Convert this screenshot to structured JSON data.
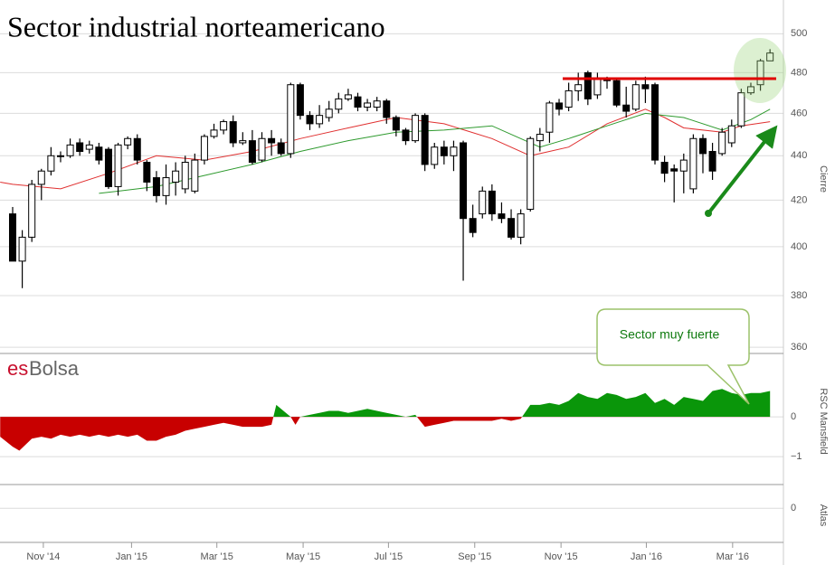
{
  "chart_data": [
    {
      "type": "candlestick",
      "title": "Sector industrial norteamericano",
      "y_label": "Cierre",
      "log": true,
      "brand": [
        "es",
        "Bolsa"
      ],
      "annotation": "Sector muy fuerte",
      "xlim": [
        -1.32,
        80.4
      ],
      "xticks": [
        {
          "value": 3.2,
          "label": "Nov '14"
        },
        {
          "value": 12.4,
          "label": "Jan '15"
        },
        {
          "value": 21.3,
          "label": "Mar '15"
        },
        {
          "value": 30.3,
          "label": "May '15"
        },
        {
          "value": 39.2,
          "label": "Jul '15"
        },
        {
          "value": 48.2,
          "label": "Sep '15"
        },
        {
          "value": 57.2,
          "label": "Nov '15"
        },
        {
          "value": 66.1,
          "label": "Jan '16"
        },
        {
          "value": 75.1,
          "label": "Mar '16"
        }
      ],
      "ylim": [
        358,
        518
      ],
      "yticks": [
        360,
        380,
        400,
        420,
        440,
        460,
        480,
        500
      ],
      "grid": true,
      "open": [
        414,
        394,
        404,
        427,
        433,
        440,
        440,
        446,
        443,
        444,
        443,
        426,
        445,
        448,
        437,
        430,
        422,
        428,
        425,
        424,
        438,
        449,
        452,
        456,
        446,
        447,
        438,
        448,
        446,
        441,
        474,
        459,
        455,
        458,
        462,
        467,
        468,
        463,
        463,
        466,
        458,
        452,
        447,
        459,
        436,
        444,
        440,
        446,
        412,
        414,
        424,
        414,
        412,
        404,
        416,
        447,
        451,
        465,
        463,
        471,
        480,
        469,
        477,
        476,
        464,
        462,
        474,
        474,
        437,
        434,
        433,
        425,
        448,
        442,
        441,
        446,
        454,
        470,
        474,
        486
      ],
      "high": [
        417,
        407,
        429,
        434,
        444,
        442,
        448,
        448,
        447,
        446,
        444,
        446,
        449,
        450,
        438,
        433,
        436,
        437,
        440,
        441,
        450,
        455,
        457,
        459,
        451,
        452,
        451,
        452,
        448,
        475,
        475,
        461,
        464,
        466,
        470,
        472,
        470,
        467,
        468,
        467,
        459,
        453,
        460,
        460,
        446,
        447,
        447,
        447,
        418,
        426,
        427,
        419,
        416,
        416,
        449,
        453,
        466,
        467,
        475,
        480,
        481,
        480,
        478,
        477,
        473,
        476,
        478,
        475,
        440,
        436,
        441,
        450,
        450,
        446,
        453,
        457,
        472,
        475,
        487,
        492
      ],
      "low": [
        394,
        383,
        402,
        420,
        431,
        437,
        439,
        440,
        441,
        436,
        425,
        422,
        443,
        436,
        424,
        419,
        418,
        422,
        423,
        423,
        436,
        448,
        450,
        444,
        445,
        436,
        437,
        440,
        440,
        439,
        457,
        452,
        453,
        456,
        460,
        466,
        461,
        461,
        461,
        455,
        449,
        445,
        446,
        433,
        434,
        436,
        433,
        386,
        404,
        412,
        411,
        410,
        403,
        401,
        415,
        442,
        446,
        459,
        461,
        466,
        464,
        467,
        472,
        463,
        458,
        461,
        465,
        436,
        428,
        419,
        423,
        423,
        432,
        429,
        440,
        444,
        453,
        469,
        471,
        486
      ],
      "close": [
        394,
        404,
        427,
        433,
        440,
        440,
        445,
        442,
        445,
        438,
        426,
        445,
        448,
        438,
        428,
        422,
        430,
        433,
        437,
        438,
        449,
        452,
        456,
        446,
        447,
        437,
        448,
        446,
        441,
        474,
        459,
        455,
        459,
        462,
        467,
        469,
        463,
        465,
        466,
        458,
        452,
        447,
        459,
        436,
        444,
        440,
        444,
        412,
        406,
        424,
        414,
        412,
        404,
        414,
        448,
        450,
        465,
        462,
        471,
        474,
        467,
        477,
        476,
        464,
        461,
        474,
        472,
        438,
        432,
        433,
        438,
        448,
        441,
        433,
        451,
        454,
        470,
        473,
        486,
        490
      ],
      "moving_averages": [
        {
          "color": "#e03030",
          "x": [
            -1.3,
            0,
            5,
            10,
            15,
            20,
            25,
            30,
            35,
            40,
            45,
            50,
            54,
            58,
            62,
            66,
            68,
            70,
            74,
            76,
            79
          ],
          "values": [
            428,
            427,
            425,
            432,
            440,
            438,
            442,
            448,
            453,
            458,
            455,
            448,
            440,
            444,
            455,
            462,
            458,
            453,
            451,
            454,
            456
          ]
        },
        {
          "color": "#2e9a2e",
          "x": [
            9,
            15,
            20,
            25,
            30,
            35,
            40,
            45,
            50,
            55,
            58,
            62,
            66,
            70,
            74,
            77,
            79
          ],
          "values": [
            423,
            426,
            431,
            436,
            442,
            447,
            451,
            452,
            454,
            444,
            448,
            454,
            460,
            458,
            452,
            457,
            462
          ]
        }
      ]
    },
    {
      "type": "area",
      "y_label": "RSC Mansfield",
      "xlim": [
        -1.32,
        80.4
      ],
      "ylim": [
        -1.68,
        1.57
      ],
      "yticks": [
        {
          "value": -1,
          "label": "−1"
        },
        0
      ],
      "grid": true,
      "colors": {
        "positive": "#0a960a",
        "negative": "#c80000"
      },
      "x": [
        -1.3,
        0,
        0.7,
        2,
        3,
        4,
        5,
        6,
        7,
        8,
        9,
        10,
        11,
        12,
        13,
        14,
        15,
        16,
        17,
        18,
        19,
        20,
        21,
        22,
        23,
        24,
        25,
        26,
        27,
        27.5,
        29,
        29.5,
        30,
        31,
        32,
        33,
        34,
        35,
        36,
        37,
        38,
        39,
        40,
        41,
        42,
        43,
        44,
        45,
        46,
        47,
        48,
        49,
        50,
        51,
        52,
        53,
        54,
        55,
        56,
        57,
        58,
        59,
        60,
        61,
        62,
        63,
        64,
        65,
        66,
        67,
        68,
        69,
        70,
        71,
        72,
        73,
        74,
        75,
        76,
        77,
        78,
        79
      ],
      "values": [
        -0.5,
        -0.75,
        -0.85,
        -0.55,
        -0.5,
        -0.55,
        -0.45,
        -0.5,
        -0.45,
        -0.5,
        -0.45,
        -0.5,
        -0.45,
        -0.5,
        -0.45,
        -0.6,
        -0.6,
        -0.5,
        -0.45,
        -0.35,
        -0.3,
        -0.25,
        -0.2,
        -0.15,
        -0.2,
        -0.25,
        -0.25,
        -0.25,
        -0.2,
        0.3,
        0,
        -0.2,
        0,
        0.05,
        0.1,
        0.15,
        0.15,
        0.1,
        0.15,
        0.2,
        0.15,
        0.1,
        0.05,
        0,
        0.05,
        -0.25,
        -0.2,
        -0.15,
        -0.1,
        -0.1,
        -0.1,
        -0.1,
        -0.1,
        -0.05,
        -0.1,
        -0.05,
        0.3,
        0.3,
        0.35,
        0.3,
        0.4,
        0.6,
        0.5,
        0.45,
        0.6,
        0.55,
        0.45,
        0.5,
        0.6,
        0.35,
        0.45,
        0.3,
        0.5,
        0.45,
        0.4,
        0.65,
        0.7,
        0.6,
        0.55,
        0.6,
        0.6,
        0.65
      ]
    },
    {
      "type": "empty",
      "y_label": "Atlas",
      "xlim": [
        -1.32,
        80.4
      ],
      "ylim": [
        -0.6,
        0.4
      ],
      "yticks": [
        0
      ]
    }
  ]
}
